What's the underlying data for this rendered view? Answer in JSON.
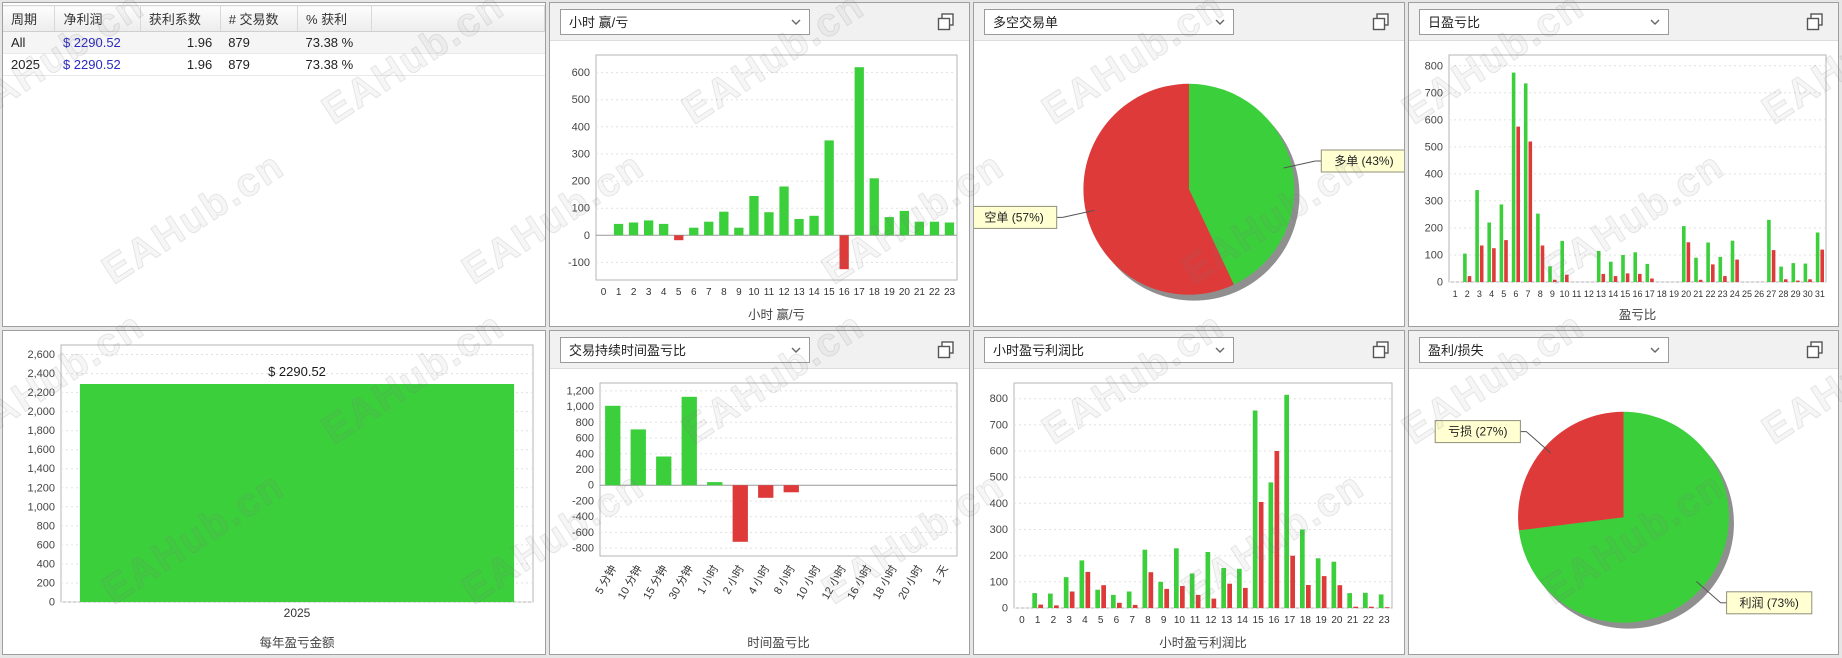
{
  "watermark": {
    "text": "EAHub.cn"
  },
  "colors": {
    "green": "#3ccf3c",
    "red": "#de3a3a",
    "net_profit_text": "#2a2ac0",
    "label_box_bg": "#ffffd2",
    "label_box_border": "#8f8f7a"
  },
  "table": {
    "headers": [
      "周期",
      "净利润",
      "获利系数",
      "# 交易数",
      "% 获利"
    ],
    "rows": [
      [
        "All",
        "$ 2290.52",
        "1.96",
        "879",
        "73.38 %"
      ],
      [
        "2025",
        "$ 2290.52",
        "1.96",
        "879",
        "73.38 %"
      ]
    ]
  },
  "panels": {
    "hour_winloss": {
      "dropdown": "小时 赢/亏"
    },
    "long_short": {
      "dropdown": "多空交易单"
    },
    "daily_pl": {
      "dropdown": "日盈亏比"
    },
    "duration": {
      "dropdown": "交易持续时间盈亏比"
    },
    "hourly_pl": {
      "dropdown": "小时盈亏利润比"
    },
    "profit_loss": {
      "dropdown": "盈利/损失"
    }
  },
  "chart_data": [
    {
      "id": "hour_winloss",
      "type": "bar",
      "title": "小时 赢/亏",
      "categories": [
        "0",
        "1",
        "2",
        "3",
        "4",
        "5",
        "6",
        "7",
        "8",
        "9",
        "10",
        "11",
        "12",
        "13",
        "14",
        "15",
        "16",
        "17",
        "18",
        "19",
        "20",
        "21",
        "22",
        "23"
      ],
      "values": [
        0,
        42,
        47,
        55,
        42,
        -18,
        28,
        50,
        87,
        28,
        145,
        85,
        180,
        60,
        72,
        350,
        -125,
        620,
        210,
        67,
        90,
        50,
        50,
        47
      ],
      "ylim": [
        -165,
        665
      ],
      "yticks": {
        "min": -100,
        "max": 600,
        "step": 100
      },
      "grid": true,
      "legend": "none"
    },
    {
      "id": "long_short",
      "type": "pie",
      "slices": [
        {
          "name": "多单",
          "pct": 43,
          "color": "green",
          "label": "多单 (43%)"
        },
        {
          "name": "空单",
          "pct": 57,
          "color": "red",
          "label": "空单 (57%)"
        }
      ]
    },
    {
      "id": "daily_pl",
      "type": "paired_bar",
      "title": "盈亏比",
      "categories": [
        "1",
        "2",
        "3",
        "4",
        "5",
        "6",
        "7",
        "8",
        "9",
        "10",
        "11",
        "12",
        "13",
        "14",
        "15",
        "16",
        "17",
        "18",
        "19",
        "20",
        "21",
        "22",
        "23",
        "24",
        "25",
        "26",
        "27",
        "28",
        "29",
        "30",
        "31"
      ],
      "series": [
        {
          "name": "profit",
          "color": "green",
          "values": [
            0,
            105,
            340,
            220,
            287,
            775,
            735,
            253,
            58,
            152,
            0,
            0,
            115,
            75,
            100,
            110,
            67,
            0,
            0,
            207,
            90,
            146,
            93,
            153,
            0,
            0,
            230,
            57,
            70,
            68,
            183
          ]
        },
        {
          "name": "loss",
          "color": "red",
          "values": [
            0,
            22,
            135,
            125,
            155,
            575,
            520,
            135,
            8,
            27,
            0,
            0,
            30,
            22,
            32,
            30,
            13,
            0,
            0,
            147,
            8,
            65,
            22,
            83,
            0,
            0,
            118,
            10,
            5,
            10,
            120
          ]
        }
      ],
      "ylim": [
        0,
        840
      ],
      "yticks": {
        "min": 0,
        "max": 800,
        "step": 100
      },
      "grid": true,
      "legend": "none"
    },
    {
      "id": "yearly",
      "type": "bar",
      "title": "每年盈亏金额",
      "categories": [
        "2025"
      ],
      "values": [
        2290.52
      ],
      "bar_label": "$ 2290.52",
      "ylim": [
        0,
        2700
      ],
      "yticks": {
        "min": 0,
        "max": 2600,
        "step": 200
      },
      "grid": true,
      "legend": "none"
    },
    {
      "id": "duration",
      "type": "bar",
      "title": "时间盈亏比",
      "categories": [
        "5 分钟",
        "10 分钟",
        "15 分钟",
        "30 分钟",
        "1 小时",
        "2 小时",
        "4 小时",
        "8 小时",
        "10 小时",
        "12 小时",
        "16 小时",
        "18 小时",
        "20 小时",
        "1 天"
      ],
      "values": [
        1010,
        710,
        365,
        1125,
        40,
        -720,
        -160,
        -90,
        0,
        0,
        0,
        0,
        0,
        0
      ],
      "ylim": [
        -900,
        1300
      ],
      "yticks": {
        "min": -800,
        "max": 1200,
        "step": 200
      },
      "grid": true,
      "legend": "none",
      "rotate_labels": true
    },
    {
      "id": "hourly_pl",
      "type": "paired_bar",
      "title": "小时盈亏利润比",
      "categories": [
        "0",
        "1",
        "2",
        "3",
        "4",
        "5",
        "6",
        "7",
        "8",
        "9",
        "10",
        "11",
        "12",
        "13",
        "14",
        "15",
        "16",
        "17",
        "18",
        "19",
        "20",
        "21",
        "22",
        "23"
      ],
      "series": [
        {
          "name": "profit",
          "color": "green",
          "values": [
            0,
            57,
            55,
            118,
            182,
            70,
            50,
            63,
            223,
            100,
            228,
            132,
            214,
            153,
            150,
            755,
            480,
            815,
            300,
            190,
            177,
            57,
            58,
            52
          ]
        },
        {
          "name": "loss",
          "color": "red",
          "values": [
            0,
            13,
            10,
            63,
            138,
            87,
            20,
            12,
            137,
            73,
            84,
            50,
            36,
            93,
            77,
            405,
            600,
            200,
            88,
            122,
            87,
            5,
            5,
            3
          ]
        }
      ],
      "ylim": [
        0,
        860
      ],
      "yticks": {
        "min": 0,
        "max": 800,
        "step": 100
      },
      "grid": true,
      "legend": "none"
    },
    {
      "id": "profit_loss",
      "type": "pie",
      "slices": [
        {
          "name": "利润",
          "pct": 73,
          "color": "green",
          "label": "利润 (73%)"
        },
        {
          "name": "亏损",
          "pct": 27,
          "color": "red",
          "label": "亏损 (27%)"
        }
      ]
    }
  ]
}
